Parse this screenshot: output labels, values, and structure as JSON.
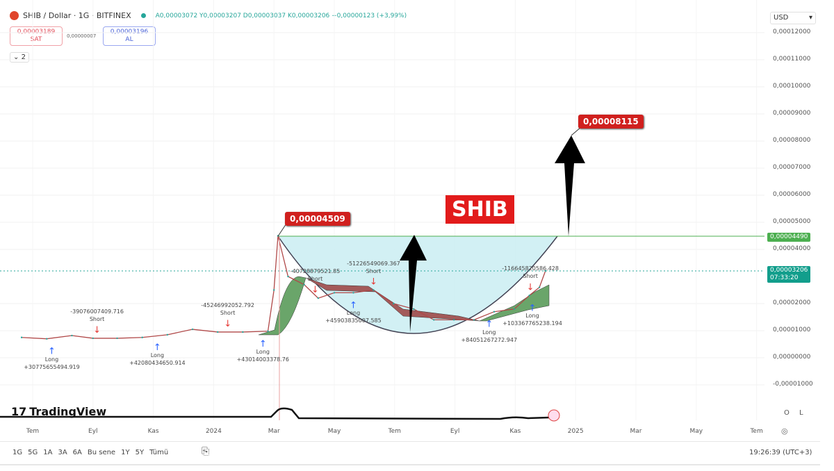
{
  "header": {
    "symbol": "SHIB / Dollar · 1G · BITFINEX",
    "ohlc": "A0,00003072 Y0,00003207 D0,00003037 K0,00003206 +0,00000123 (+3,99%)"
  },
  "trade": {
    "sell_price": "0,00003189",
    "sell_label": "SAT",
    "spread": "0,00000007",
    "buy_price": "0,00003196",
    "buy_label": "AL"
  },
  "indicators_toggle": "2",
  "currency": "USD",
  "price_tags": {
    "line": "0,00004490",
    "last": "0,00003206",
    "countdown": "07:33:20"
  },
  "annotations": {
    "peak": "0,00004509",
    "target": "0,00008115",
    "title": "SHIB"
  },
  "logo": "TradingView",
  "scale_buttons": [
    "O",
    "L"
  ],
  "timeframes": [
    "1G",
    "5G",
    "1A",
    "3A",
    "6A",
    "Bu sene",
    "1Y",
    "5Y",
    "Tümü"
  ],
  "clock": "19:26:39 (UTC+3)",
  "colors": {
    "up": "#26a69a",
    "down": "#ef5350",
    "cup_fill": "#cdeef3",
    "cloud_up": "#6aa56a",
    "cloud_down": "#a35a5a",
    "line": "#4caf50",
    "label": "#d0201e"
  },
  "chart_data": {
    "type": "line",
    "title": "",
    "ylim": [
      -1e-05,
      0.00012
    ],
    "yticks": [
      "0,00012000",
      "0,00011000",
      "0,00010000",
      "0,00009000",
      "0,00008000",
      "0,00007000",
      "0,00006000",
      "0,00005000",
      "0,00004000",
      "0,00002000",
      "0,00001000",
      "0,00000000",
      "-0,00001000"
    ],
    "ytick_values": [
      0.00012,
      0.00011,
      0.0001,
      9e-05,
      8e-05,
      7e-05,
      6e-05,
      5e-05,
      4e-05,
      2e-05,
      1e-05,
      0,
      -1e-05
    ],
    "xticks": [
      "Tem",
      "Eyl",
      "Kas",
      "2024",
      "Mar",
      "May",
      "Tem",
      "Eyl",
      "Kas",
      "2025",
      "Mar",
      "May",
      "Tem"
    ],
    "xtick_dates": [
      "2023-07",
      "2023-09",
      "2023-11",
      "2024-01",
      "2024-03",
      "2024-05",
      "2024-07",
      "2024-09",
      "2024-11",
      "2025-01",
      "2025-03",
      "2025-05",
      "2025-07"
    ],
    "series": [
      {
        "x": [
          "2023-06-20",
          "2023-07-15",
          "2023-08-10",
          "2023-09-01",
          "2023-09-25",
          "2023-10-20",
          "2023-11-15",
          "2023-12-10",
          "2024-01-05",
          "2024-01-30",
          "2024-02-25",
          "2024-03-01",
          "2024-03-05",
          "2024-03-15",
          "2024-04-01",
          "2024-04-15",
          "2024-05-01",
          "2024-05-20",
          "2024-06-10",
          "2024-06-30",
          "2024-07-20",
          "2024-08-10",
          "2024-08-30",
          "2024-09-20",
          "2024-10-10",
          "2024-10-30",
          "2024-11-15",
          "2024-11-25",
          "2024-12-01"
        ],
        "y": [
          7.5e-06,
          7e-06,
          8.2e-06,
          7.2e-06,
          7.2e-06,
          7.5e-06,
          8.5e-06,
          1.05e-05,
          9.5e-06,
          9.5e-06,
          9.8e-06,
          2.5e-05,
          4.5e-05,
          3e-05,
          2.7e-05,
          2.2e-05,
          2.4e-05,
          2.4e-05,
          2.5e-05,
          2e-05,
          1.8e-05,
          1.4e-05,
          1.4e-05,
          1.4e-05,
          1.7e-05,
          1.8e-05,
          2.3e-05,
          2.6e-05,
          3.206e-05
        ]
      }
    ],
    "horizontal_line": 4.49e-05,
    "signals": [
      {
        "type": "Long",
        "value": "+30775655494.919",
        "date": "2023-07-20"
      },
      {
        "type": "Short",
        "value": "-39076007409.716",
        "date": "2023-09-05"
      },
      {
        "type": "Long",
        "value": "+42080434650.914",
        "date": "2023-11-05"
      },
      {
        "type": "Short",
        "value": "-45246992052.792",
        "date": "2024-01-15"
      },
      {
        "type": "Long",
        "value": "+43014003378.76",
        "date": "2024-02-20"
      },
      {
        "type": "Short",
        "value": "-40728879521.85",
        "date": "2024-04-12"
      },
      {
        "type": "Long",
        "value": "+45903835007.585",
        "date": "2024-05-20"
      },
      {
        "type": "Short",
        "value": "-51226549069.367",
        "date": "2024-06-10"
      },
      {
        "type": "Long",
        "value": "+84051267272.947",
        "date": "2024-10-05"
      },
      {
        "type": "Long",
        "value": "+103367765238.194",
        "date": "2024-11-18"
      },
      {
        "type": "Short",
        "value": "-116645820586.428",
        "date": "2024-11-16"
      }
    ]
  }
}
